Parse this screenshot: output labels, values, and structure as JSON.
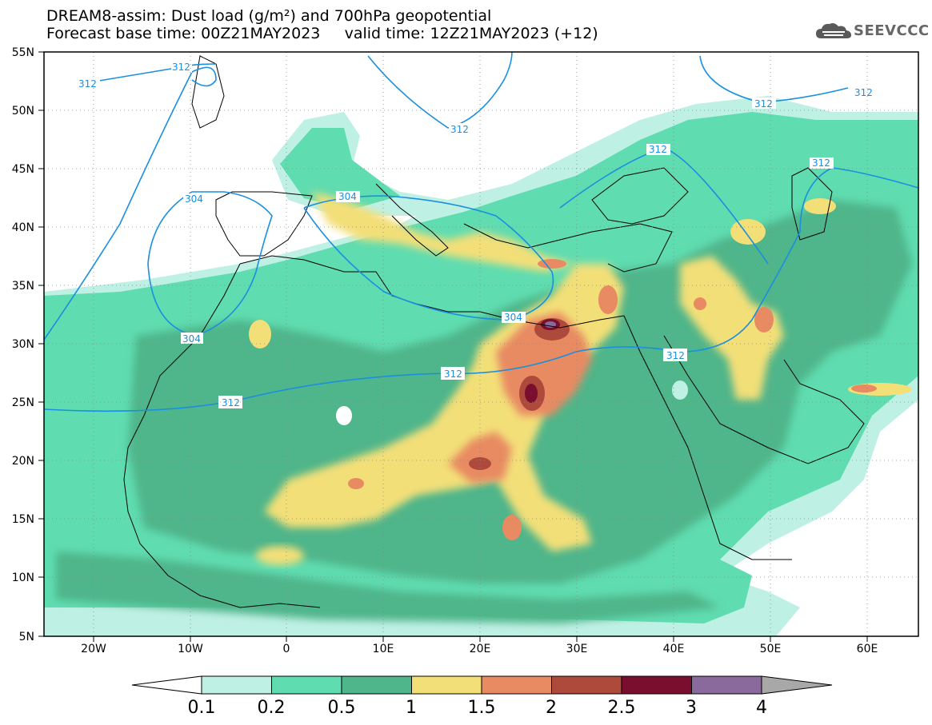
{
  "title": {
    "line1": "DREAM8-assim: Dust load (g/m²) and 700hPa geopotential",
    "line2": "Forecast base time: 00Z21MAY2023     valid time: 12Z21MAY2023 (+12)"
  },
  "logo": {
    "text": "SEEVCCC",
    "icon": "cloud-logo-icon"
  },
  "axes": {
    "lon_labels": [
      "20W",
      "10W",
      "0",
      "10E",
      "20E",
      "30E",
      "40E",
      "50E",
      "60E"
    ],
    "lat_labels": [
      "55N",
      "50N",
      "45N",
      "40N",
      "35N",
      "30N",
      "25N",
      "20N",
      "15N",
      "10N",
      "5N"
    ]
  },
  "colorbar": {
    "labels": [
      "0.1",
      "0.2",
      "0.5",
      "1",
      "1.5",
      "2",
      "2.5",
      "3",
      "4"
    ],
    "colors": [
      "#bff0e4",
      "#5fdcb0",
      "#4fb58a",
      "#f3df78",
      "#e88a62",
      "#ad4a3c",
      "#7a0e2e",
      "#8a6a9c"
    ],
    "under_color": "#ffffff",
    "over_color": "#a8a8a8"
  },
  "contours": {
    "color": "#1a8fe0",
    "labels": [
      "312",
      "312",
      "312",
      "312",
      "312",
      "304",
      "304",
      "304",
      "304",
      "312",
      "312",
      "312",
      "312",
      "312"
    ]
  },
  "chart_data": {
    "type": "heatmap",
    "title": "DREAM8-assim: Dust load (g/m²) and 700hPa geopotential",
    "variable": "Dust load (g/m²)",
    "overlay": "700hPa geopotential",
    "lon_range": [
      -25,
      65
    ],
    "lat_range": [
      5,
      55
    ],
    "levels": [
      0.1,
      0.2,
      0.5,
      1,
      1.5,
      2,
      2.5,
      3,
      4
    ],
    "contour_values": [
      304,
      312
    ],
    "grid": true
  }
}
